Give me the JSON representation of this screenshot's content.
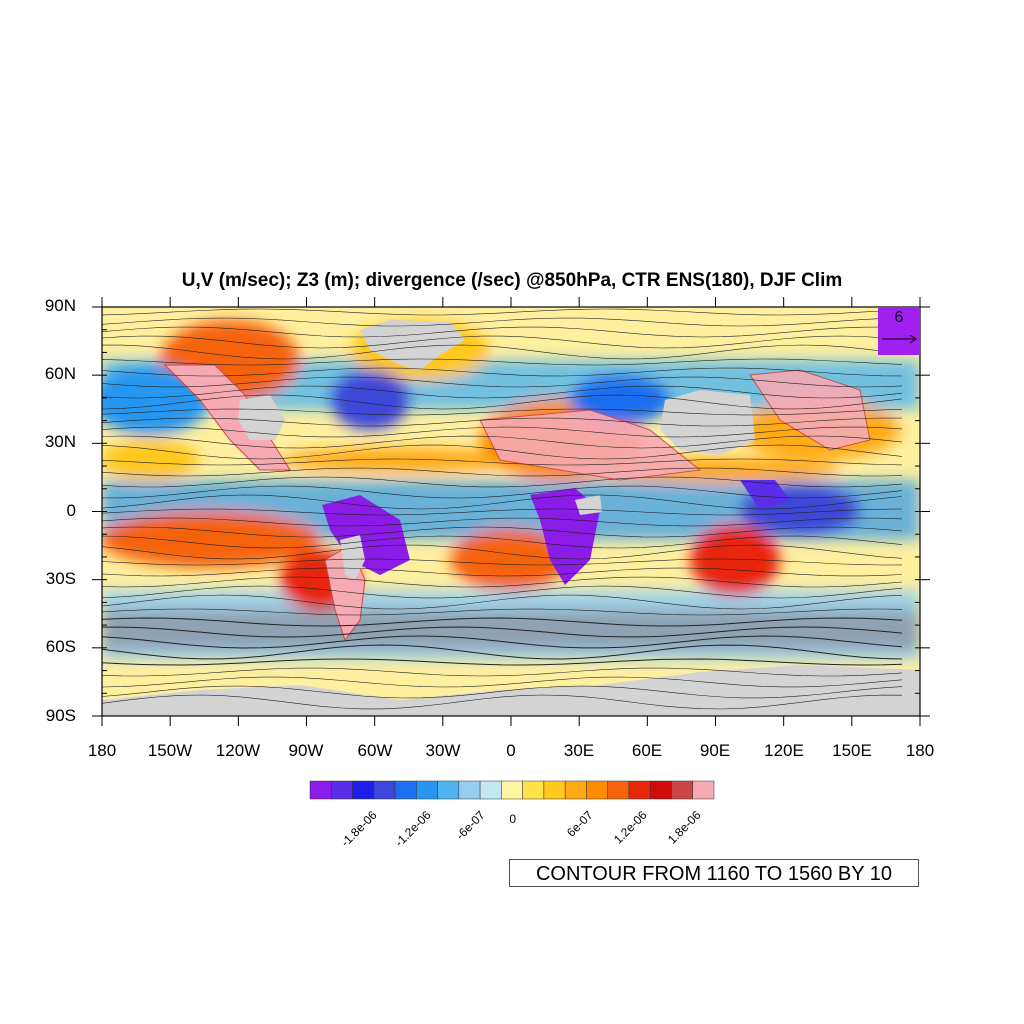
{
  "title": "U,V (m/sec); Z3 (m); divergence (/sec) @850hPa, CTR ENS(180), DJF Clim",
  "y_axis_labels": [
    "90N",
    "60N",
    "30N",
    "0",
    "30S",
    "60S",
    "90S"
  ],
  "x_axis_labels": [
    "180",
    "150W",
    "120W",
    "90W",
    "60W",
    "30W",
    "0",
    "30E",
    "60E",
    "90E",
    "120E",
    "150E",
    "180"
  ],
  "colorbar": {
    "colors": [
      "#8b1ce8",
      "#5a2ee8",
      "#1e1ee8",
      "#3c46d8",
      "#1e6ef0",
      "#2896f0",
      "#50b4f0",
      "#96cdf0",
      "#c3e6f5",
      "#fff5a0",
      "#ffe14b",
      "#ffc81e",
      "#ffaa14",
      "#ff8c00",
      "#f5640a",
      "#e8280a",
      "#d20a0a",
      "#cd4646",
      "#f5aab4"
    ],
    "labels": [
      "-1.8e-06",
      "-1.2e-06",
      "-6e-07",
      "0",
      "6e-07",
      "1.2e-06",
      "1.8e-06"
    ]
  },
  "contour_info": "CONTOUR FROM 1160 TO 1560 BY 10",
  "reference_vector": {
    "magnitude": "6"
  },
  "colors": {
    "land_mask": "#d3d3d3",
    "ref_box": "#a020f0"
  }
}
